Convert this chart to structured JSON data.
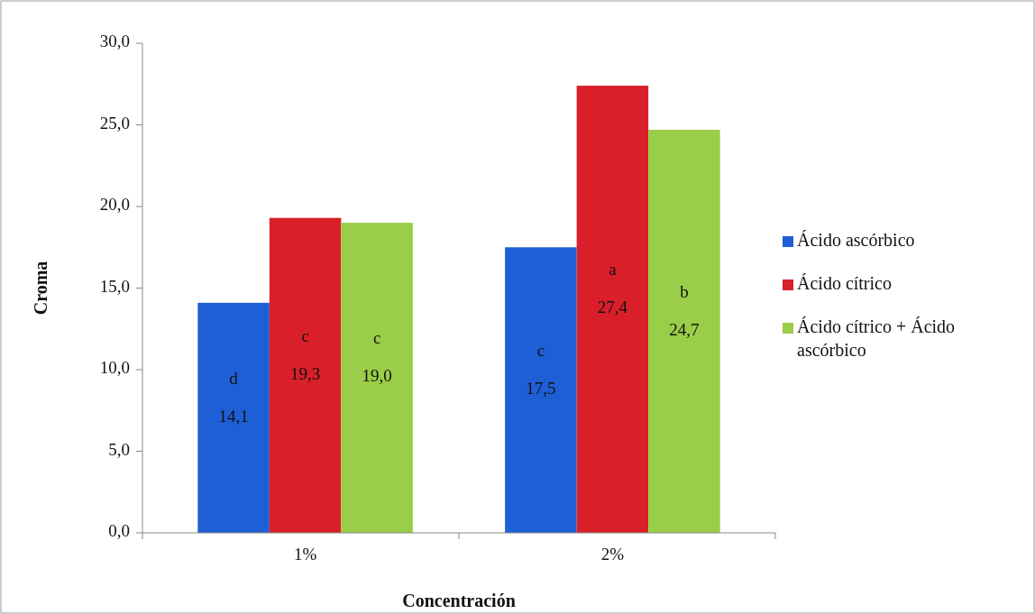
{
  "chart_data": {
    "type": "bar",
    "xlabel": "Concentración",
    "ylabel": "Croma",
    "categories": [
      "1%",
      "2%"
    ],
    "series": [
      {
        "name": "Ácido ascórbico",
        "color": "#1f5fd6",
        "values": [
          14.1,
          17.5
        ],
        "value_labels": [
          "14,1",
          "17,5"
        ]
      },
      {
        "name": "Ácido cítrico",
        "color": "#d9202a",
        "values": [
          19.3,
          27.4
        ],
        "value_labels": [
          "19,3",
          "27,4"
        ]
      },
      {
        "name": "Ácido cítrico + Ácido ascórbico",
        "color": "#9acd48",
        "values": [
          19.0,
          24.7
        ],
        "value_labels": [
          "19,0",
          "24,7"
        ]
      }
    ],
    "ylim": [
      0,
      30
    ],
    "yticks": [
      {
        "value": 0,
        "label": "0,0"
      },
      {
        "value": 5,
        "label": "5,0"
      },
      {
        "value": 10,
        "label": "10,0"
      },
      {
        "value": 15,
        "label": "15,0"
      },
      {
        "value": 20,
        "label": "20,0"
      },
      {
        "value": 25,
        "label": "25,0"
      },
      {
        "value": 30,
        "label": "30,0"
      }
    ],
    "annotations": [
      "d",
      "c",
      "c",
      "c",
      "a",
      "b"
    ],
    "legend": "right",
    "grid": false
  }
}
